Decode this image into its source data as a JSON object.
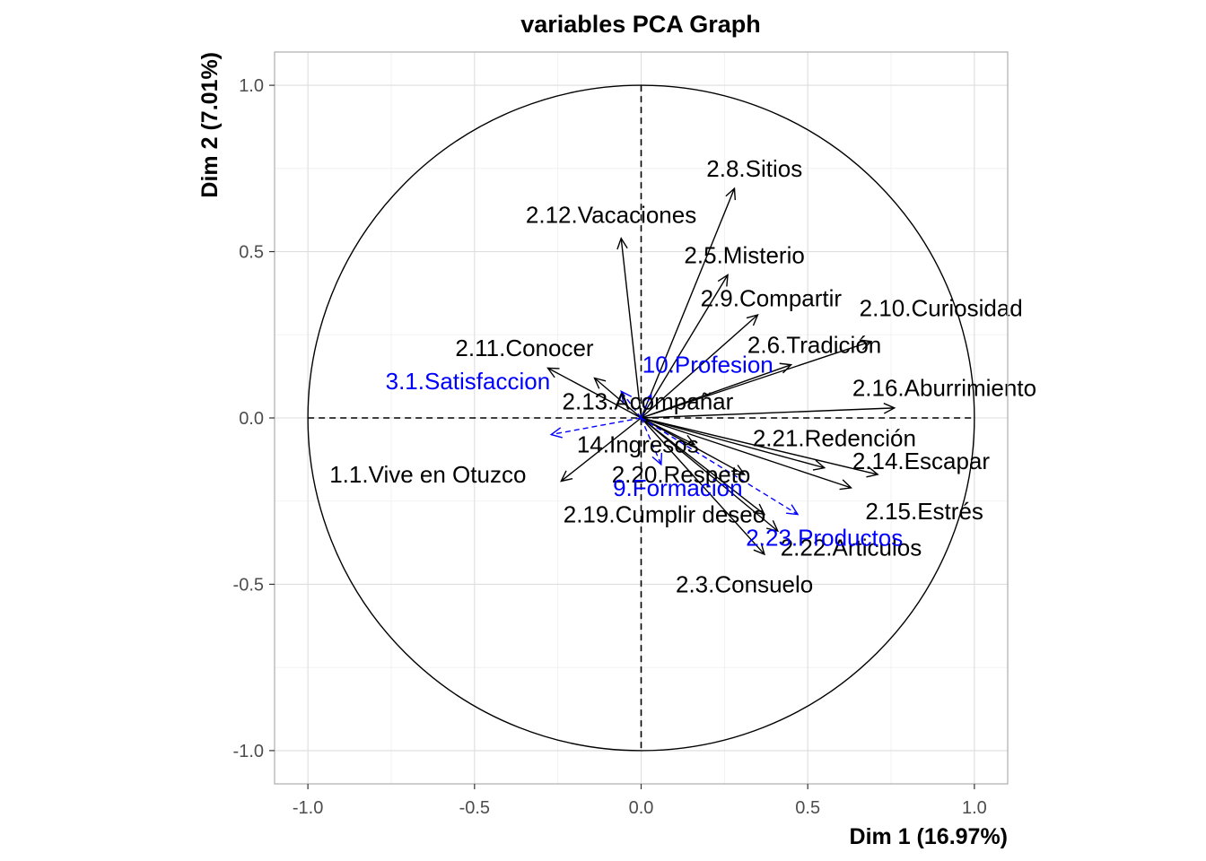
{
  "chart_data": {
    "type": "scatter",
    "subtype": "pca-correlation-circle",
    "title": "variables PCA Graph",
    "xlabel": "Dim 1 (16.97%)",
    "ylabel": "Dim 2 (7.01%)",
    "xlim": [
      -1.1,
      1.1
    ],
    "ylim": [
      -1.1,
      1.1
    ],
    "xticks": [
      "-1.0",
      "-0.5",
      "0.0",
      "0.5",
      "1.0"
    ],
    "yticks": [
      "1.0",
      "0.5",
      "0.0",
      "-0.5",
      "-1.0"
    ],
    "grid": true,
    "unit_circle": true,
    "colors": {
      "active": "#000000",
      "supplementary": "#0000ff",
      "frame": "#b3b3b3",
      "tick": "#4d4d4d"
    },
    "active_variables": [
      {
        "name": "2.8.Sitios",
        "x": 0.28,
        "y": 0.69
      },
      {
        "name": "2.12.Vacaciones",
        "x": -0.06,
        "y": 0.54
      },
      {
        "name": "2.5.Misterio",
        "x": 0.26,
        "y": 0.43
      },
      {
        "name": "2.9.Compartir",
        "x": 0.35,
        "y": 0.31
      },
      {
        "name": "2.10.Curiosidad",
        "x": 0.69,
        "y": 0.23
      },
      {
        "name": "2.6.Tradición",
        "x": 0.45,
        "y": 0.16
      },
      {
        "name": "2.11.Conocer",
        "x": -0.28,
        "y": 0.15
      },
      {
        "name": "2.13.Acompañar",
        "x": -0.14,
        "y": 0.12
      },
      {
        "name": "2.16.Aburrimiento",
        "x": 0.76,
        "y": 0.03
      },
      {
        "name": "2.21.Redención",
        "x": 0.55,
        "y": -0.15
      },
      {
        "name": "2.14.Escapar",
        "x": 0.71,
        "y": -0.17
      },
      {
        "name": "2.15.Estrés",
        "x": 0.63,
        "y": -0.21
      },
      {
        "name": "14.Ingresos",
        "x": 0.16,
        "y": -0.08
      },
      {
        "name": "1.1.Vive en Otuzco",
        "x": -0.24,
        "y": -0.19
      },
      {
        "name": "2.20.Respeto",
        "x": 0.31,
        "y": -0.17
      },
      {
        "name": "2.19.Cumplir deseo",
        "x": 0.37,
        "y": -0.29
      },
      {
        "name": "2.22.Articulos",
        "x": 0.41,
        "y": -0.34
      },
      {
        "name": "2.3.Consuelo",
        "x": 0.37,
        "y": -0.41
      }
    ],
    "supplementary_variables": [
      {
        "name": "3.1.Satisfaccion",
        "x": -0.06,
        "y": 0.08
      },
      {
        "name": "10.Profesion",
        "x": 0.03,
        "y": 0.07
      },
      {
        "name": "14.Ingresos",
        "x": -0.27,
        "y": -0.05
      },
      {
        "name": "9.Formacion",
        "x": 0.06,
        "y": -0.14
      },
      {
        "name": "2.23.Productos",
        "x": 0.47,
        "y": -0.29
      }
    ],
    "labels": [
      {
        "text": "2.8.Sitios",
        "x": 0.34,
        "y": 0.75,
        "group": "active"
      },
      {
        "text": "2.12.Vacaciones",
        "x": -0.09,
        "y": 0.61,
        "group": "active"
      },
      {
        "text": "2.5.Misterio",
        "x": 0.31,
        "y": 0.49,
        "group": "active"
      },
      {
        "text": "2.9.Compartir",
        "x": 0.39,
        "y": 0.36,
        "group": "active"
      },
      {
        "text": "2.10.Curiosidad",
        "x": 0.9,
        "y": 0.33,
        "group": "active"
      },
      {
        "text": "2.6.Tradición",
        "x": 0.52,
        "y": 0.22,
        "group": "active"
      },
      {
        "text": "2.11.Conocer",
        "x": -0.35,
        "y": 0.21,
        "group": "active"
      },
      {
        "text": "2.13.Acompañar",
        "x": 0.02,
        "y": 0.05,
        "group": "active"
      },
      {
        "text": "2.16.Aburrimiento",
        "x": 0.91,
        "y": 0.09,
        "group": "active"
      },
      {
        "text": "2.21.Redención",
        "x": 0.58,
        "y": -0.06,
        "group": "active"
      },
      {
        "text": "2.14.Escapar",
        "x": 0.84,
        "y": -0.13,
        "group": "active"
      },
      {
        "text": "2.15.Estrés",
        "x": 0.85,
        "y": -0.28,
        "group": "active"
      },
      {
        "text": "14.Ingresos",
        "x": -0.01,
        "y": -0.08,
        "group": "active"
      },
      {
        "text": "1.1.Vive en Otuzco",
        "x": -0.64,
        "y": -0.17,
        "group": "active"
      },
      {
        "text": "2.20.Respeto",
        "x": 0.12,
        "y": -0.17,
        "group": "active"
      },
      {
        "text": "2.19.Cumplir deseo",
        "x": 0.07,
        "y": -0.29,
        "group": "active"
      },
      {
        "text": "2.22.Articulos",
        "x": 0.63,
        "y": -0.39,
        "group": "active"
      },
      {
        "text": "2.3.Consuelo",
        "x": 0.31,
        "y": -0.5,
        "group": "active"
      },
      {
        "text": "3.1.Satisfaccion",
        "x": -0.52,
        "y": 0.11,
        "group": "supplementary"
      },
      {
        "text": "10.Profesion",
        "x": 0.2,
        "y": 0.16,
        "group": "supplementary"
      },
      {
        "text": "9.Formacion",
        "x": 0.11,
        "y": -0.21,
        "group": "supplementary"
      },
      {
        "text": "2.23.Productos",
        "x": 0.55,
        "y": -0.36,
        "group": "supplementary"
      }
    ]
  }
}
